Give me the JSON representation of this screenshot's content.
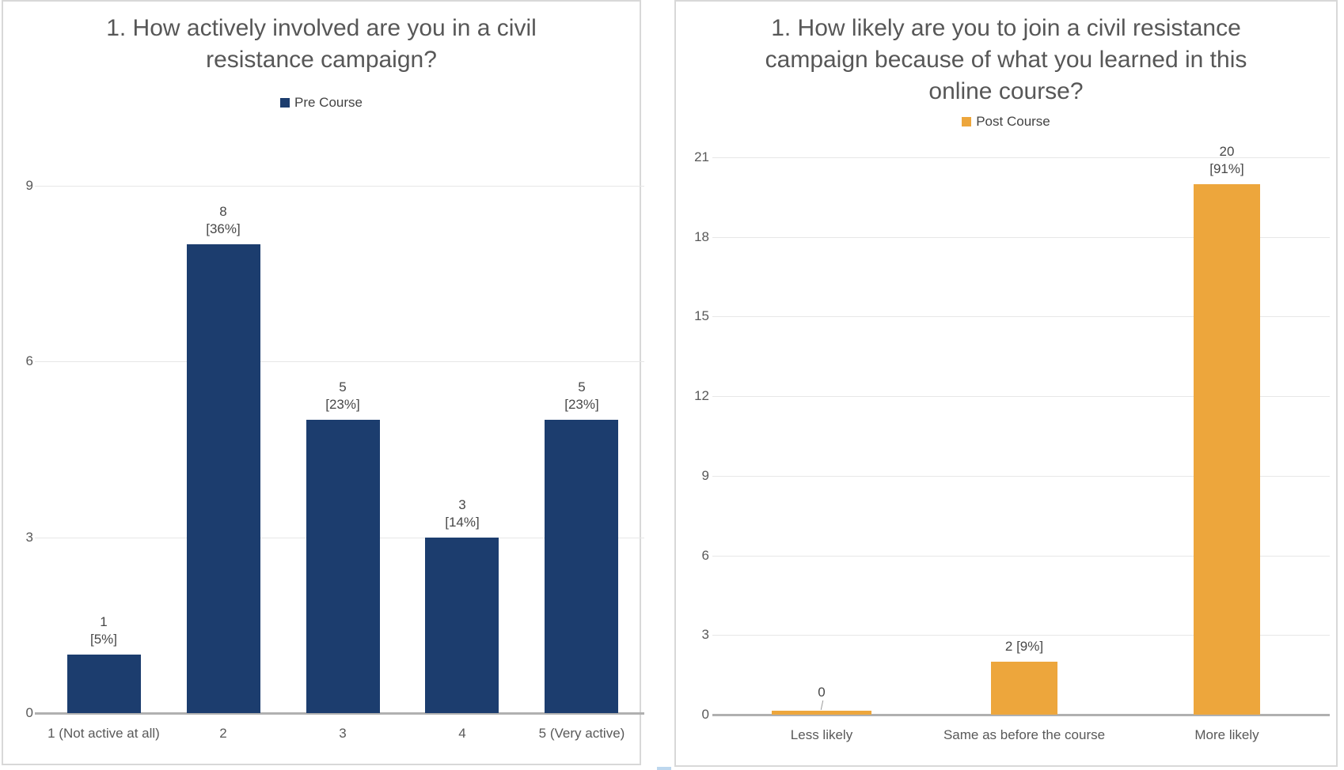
{
  "chart_data": [
    {
      "type": "bar",
      "title": "1. How actively involved are you in a civil resistance campaign?",
      "legend_position": "top",
      "grid": true,
      "categories": [
        "1 (Not active at all)",
        "2",
        "3",
        "4",
        "5 (Very active)"
      ],
      "series": [
        {
          "name": "Pre Course",
          "color": "#1C3D6E",
          "values": [
            1,
            8,
            5,
            3,
            5
          ],
          "data_labels": [
            [
              "1",
              "[5%]"
            ],
            [
              "8",
              "[36%]"
            ],
            [
              "5",
              "[23%]"
            ],
            [
              "3",
              "[14%]"
            ],
            [
              "5",
              "[23%]"
            ]
          ]
        }
      ],
      "xlabel": "",
      "ylabel": "",
      "ylim": [
        0,
        9
      ],
      "yticks": [
        0,
        3,
        6,
        9
      ]
    },
    {
      "type": "bar",
      "title": "1. How likely are you to join a civil resistance campaign because of what you learned in this online course?",
      "legend_position": "top",
      "grid": true,
      "categories": [
        "Less likely",
        "Same as before the course",
        "More likely"
      ],
      "series": [
        {
          "name": "Post Course",
          "color": "#EDA63C",
          "values": [
            0,
            2,
            20
          ],
          "data_labels": [
            [
              "0"
            ],
            [
              "2 [9%]"
            ],
            [
              "20",
              "[91%]"
            ]
          ]
        }
      ],
      "xlabel": "",
      "ylabel": "",
      "ylim": [
        0,
        21
      ],
      "yticks": [
        0,
        3,
        6,
        9,
        12,
        15,
        18,
        21
      ]
    }
  ],
  "decorations": {
    "cropped_fragment_color": "#BDD7EE",
    "gridline_color": "#E7E7E7",
    "baseline_color": "#B0B0B0",
    "title_color": "#575757"
  }
}
